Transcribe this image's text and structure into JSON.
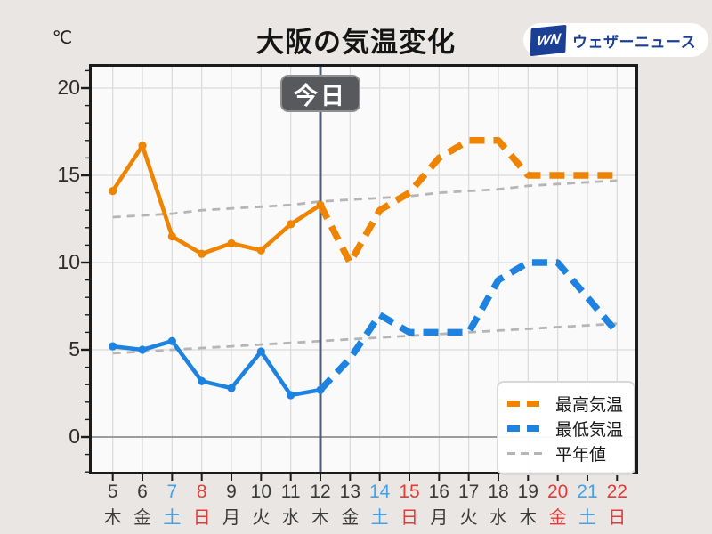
{
  "page": {
    "background": "#e9e6e3"
  },
  "header": {
    "unit": "℃",
    "title": "大阪の気温変化"
  },
  "logo": {
    "mark": "WN",
    "name": "ウェザーニュース",
    "brand_color": "#1b3f94"
  },
  "today": {
    "label": "今日",
    "day": 12
  },
  "legend": {
    "items": [
      {
        "label": "最高気温",
        "color": "#ee8400",
        "style": "thick-dash"
      },
      {
        "label": "最低気温",
        "color": "#1e83e0",
        "style": "thick-dash"
      },
      {
        "label": "平年値",
        "color": "#b5b5b5",
        "style": "thin-dash"
      }
    ]
  },
  "chart_data": {
    "type": "line",
    "title": "大阪の気温変化",
    "ylabel": "℃",
    "ylim": [
      -2.1,
      21.4
    ],
    "y_ticks": [
      0,
      5,
      10,
      15,
      20
    ],
    "grid": true,
    "x_days": [
      5,
      6,
      7,
      8,
      9,
      10,
      11,
      12,
      13,
      14,
      15,
      16,
      17,
      18,
      19,
      20,
      21,
      22
    ],
    "x_weekdays": [
      "木",
      "金",
      "土",
      "日",
      "月",
      "火",
      "水",
      "木",
      "金",
      "土",
      "日",
      "月",
      "火",
      "水",
      "木",
      "金",
      "土",
      "日"
    ],
    "x_label_colors": [
      "wk",
      "wk",
      "sat",
      "sun",
      "wk",
      "wk",
      "wk",
      "wk",
      "wk",
      "sat",
      "sun",
      "wk",
      "wk",
      "wk",
      "wk",
      "sun",
      "sat",
      "sun"
    ],
    "today_day": 12,
    "observed_until_day": 12,
    "series": [
      {
        "name": "最高気温",
        "color": "#ee8400",
        "style": "thick",
        "values": [
          14.1,
          16.7,
          11.5,
          10.5,
          11.1,
          10.7,
          12.2,
          13.3,
          10,
          13,
          14,
          16,
          17,
          17,
          15,
          15,
          15,
          15
        ]
      },
      {
        "name": "最低気温",
        "color": "#1e83e0",
        "style": "thick",
        "values": [
          5.2,
          5.0,
          5.5,
          3.2,
          2.8,
          4.9,
          2.4,
          2.7,
          4.5,
          7,
          6,
          6,
          6,
          9,
          10,
          10,
          8,
          6
        ]
      },
      {
        "name": "平年値(最高)",
        "color": "#b5b5b5",
        "style": "thin-dash",
        "values": [
          12.6,
          12.7,
          12.8,
          13.0,
          13.1,
          13.2,
          13.3,
          13.5,
          13.6,
          13.7,
          13.8,
          14.0,
          14.1,
          14.2,
          14.4,
          14.5,
          14.6,
          14.7
        ]
      },
      {
        "name": "平年値(最低)",
        "color": "#b5b5b5",
        "style": "thin-dash",
        "values": [
          4.8,
          4.9,
          5.0,
          5.1,
          5.2,
          5.3,
          5.4,
          5.5,
          5.6,
          5.7,
          5.8,
          5.9,
          6.0,
          6.1,
          6.2,
          6.3,
          6.4,
          6.5
        ]
      }
    ],
    "colors": {
      "grid": "#dadada",
      "zero_line": "#9c9c9c",
      "frame": "#1b1b1b",
      "today_line": "#4f5e74",
      "plot_bg": "#fafafa",
      "saturday": "#45a1e8",
      "sunday_holiday": "#e03c3c",
      "weekday": "#3a3a3a"
    }
  }
}
